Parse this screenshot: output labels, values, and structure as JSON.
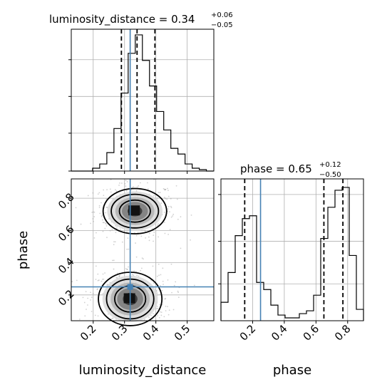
{
  "chart_data": [
    {
      "type": "histogram",
      "panel": "top-left",
      "title": {
        "param": "luminosity_distance",
        "value": "0.34",
        "plus": "+0.06",
        "minus": "−0.05"
      },
      "xlim": [
        0.13,
        0.585
      ],
      "ylim": [
        0,
        1
      ],
      "bin_edges": [
        0.13,
        0.1527,
        0.1754,
        0.1981,
        0.2208,
        0.2435,
        0.2662,
        0.2889,
        0.3116,
        0.3343,
        0.357,
        0.3797,
        0.4024,
        0.4251,
        0.4478,
        0.4705,
        0.4932,
        0.5159,
        0.5386,
        0.5613,
        0.584
      ],
      "heights": [
        0.0,
        0.0,
        0.0,
        0.02,
        0.05,
        0.13,
        0.3,
        0.55,
        0.83,
        0.96,
        0.78,
        0.6,
        0.42,
        0.29,
        0.16,
        0.12,
        0.05,
        0.02,
        0.01,
        0.0
      ],
      "quantiles": [
        0.29,
        0.34,
        0.397
      ],
      "truth": 0.318,
      "gridlines_y": [
        0.267,
        0.526,
        0.785
      ],
      "gridlines_x": [
        0.2,
        0.3,
        0.4,
        0.5
      ]
    },
    {
      "type": "histogram",
      "panel": "bottom-right",
      "title": {
        "param": "phase",
        "value": "0.65",
        "plus": "+0.12",
        "minus": "−0.50"
      },
      "xlabel": "phase",
      "xlim": [
        0.0,
        0.9
      ],
      "ylim": [
        0,
        1
      ],
      "xticks": [
        "0.2",
        "0.4",
        "0.6",
        "0.8"
      ],
      "bin_edges": [
        0.0,
        0.045,
        0.09,
        0.135,
        0.18,
        0.225,
        0.27,
        0.315,
        0.36,
        0.405,
        0.45,
        0.495,
        0.54,
        0.585,
        0.63,
        0.675,
        0.72,
        0.765,
        0.81,
        0.855,
        0.9
      ],
      "heights": [
        0.13,
        0.34,
        0.6,
        0.72,
        0.74,
        0.27,
        0.22,
        0.11,
        0.04,
        0.02,
        0.02,
        0.05,
        0.07,
        0.18,
        0.58,
        0.8,
        0.92,
        0.94,
        0.46,
        0.08
      ],
      "quantiles": [
        0.15,
        0.65,
        0.77
      ],
      "truth": 0.25,
      "gridlines_y": [
        0.26,
        0.56,
        0.89
      ]
    },
    {
      "type": "2d_histogram_contour",
      "panel": "bottom-left",
      "xlabel": "luminosity_distance",
      "ylabel": "phase",
      "xlim": [
        0.13,
        0.585
      ],
      "ylim": [
        0.04,
        0.92
      ],
      "xticks": [
        "0.2",
        "0.3",
        "0.4",
        "0.5"
      ],
      "yticks": [
        "0.2",
        "0.4",
        "0.6",
        "0.8"
      ],
      "truth": {
        "x": 0.318,
        "y": 0.25
      },
      "modes": [
        {
          "center": [
            0.333,
            0.72
          ],
          "spread": [
            0.052,
            0.072
          ]
        },
        {
          "center": [
            0.318,
            0.175
          ],
          "spread": [
            0.052,
            0.085
          ]
        }
      ],
      "contour_levels": [
        0.4,
        0.7,
        0.9
      ]
    }
  ]
}
